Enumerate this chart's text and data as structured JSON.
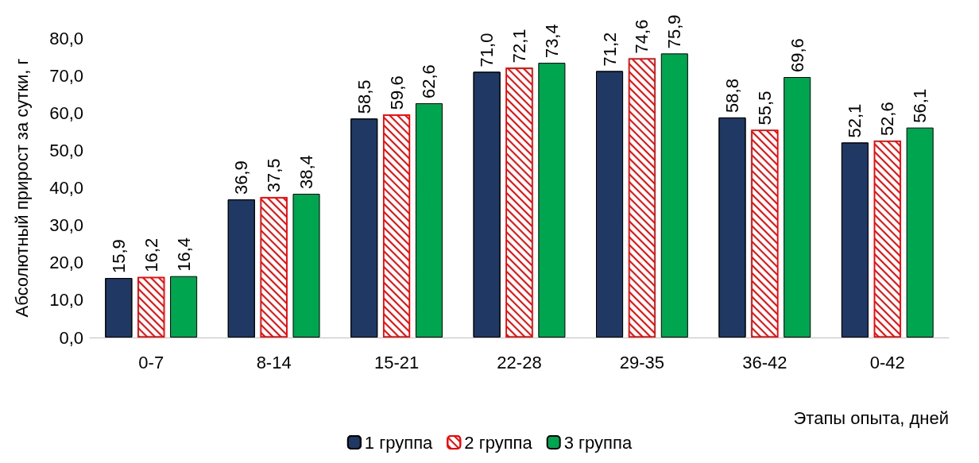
{
  "chart_data": {
    "type": "bar",
    "xlabel": "Этапы опыта, дней",
    "ylabel": "Абсолютный прирост за сутки, г",
    "categories": [
      "0-7",
      "8-14",
      "15-21",
      "22-28",
      "29-35",
      "36-42",
      "0-42"
    ],
    "series": [
      {
        "name": "1 группа",
        "color": "#1f3864",
        "values": [
          15.9,
          36.9,
          58.5,
          71.0,
          71.2,
          58.8,
          52.1
        ],
        "value_labels": [
          "15,9",
          "36,9",
          "58,5",
          "71,0",
          "71,2",
          "58,8",
          "52,1"
        ]
      },
      {
        "name": "2 группа",
        "color": "#ff0000",
        "values": [
          16.2,
          37.5,
          59.6,
          72.1,
          74.6,
          55.5,
          52.6
        ],
        "value_labels": [
          "16,2",
          "37,5",
          "59,6",
          "72,1",
          "74,6",
          "55,5",
          "52,6"
        ]
      },
      {
        "name": "3 группа",
        "color": "#00a550",
        "values": [
          16.4,
          38.4,
          62.6,
          73.4,
          75.9,
          69.6,
          56.1
        ],
        "value_labels": [
          "16,4",
          "38,4",
          "62,6",
          "73,4",
          "75,9",
          "69,6",
          "56,1"
        ]
      }
    ],
    "ylim": [
      0,
      80
    ],
    "yticks": [
      {
        "value": 0,
        "label": "0,0"
      },
      {
        "value": 10,
        "label": "10,0"
      },
      {
        "value": 20,
        "label": "20,0"
      },
      {
        "value": 30,
        "label": "30,0"
      },
      {
        "value": 40,
        "label": "40,0"
      },
      {
        "value": 50,
        "label": "50,0"
      },
      {
        "value": 60,
        "label": "60,0"
      },
      {
        "value": 70,
        "label": "70,0"
      },
      {
        "value": 80,
        "label": "80,0"
      }
    ],
    "grid": false,
    "legend": "bottom"
  }
}
